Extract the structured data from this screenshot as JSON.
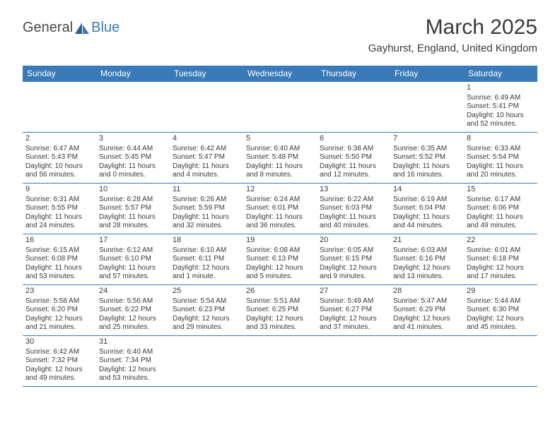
{
  "logo": {
    "general": "General",
    "blue": "Blue"
  },
  "title": "March 2025",
  "location": "Gayhurst, England, United Kingdom",
  "headers": [
    "Sunday",
    "Monday",
    "Tuesday",
    "Wednesday",
    "Thursday",
    "Friday",
    "Saturday"
  ],
  "colors": {
    "header_bg": "#3a7ab8",
    "header_text": "#ffffff",
    "border": "#3a7ab8",
    "shaded": "#f0f0f0",
    "text": "#3a3a3a"
  },
  "weeks": [
    [
      null,
      null,
      null,
      null,
      null,
      null,
      {
        "n": "1",
        "sr": "Sunrise: 6:49 AM",
        "ss": "Sunset: 5:41 PM",
        "dl1": "Daylight: 10 hours",
        "dl2": "and 52 minutes."
      }
    ],
    [
      {
        "n": "2",
        "sr": "Sunrise: 6:47 AM",
        "ss": "Sunset: 5:43 PM",
        "dl1": "Daylight: 10 hours",
        "dl2": "and 56 minutes."
      },
      {
        "n": "3",
        "sr": "Sunrise: 6:44 AM",
        "ss": "Sunset: 5:45 PM",
        "dl1": "Daylight: 11 hours",
        "dl2": "and 0 minutes."
      },
      {
        "n": "4",
        "sr": "Sunrise: 6:42 AM",
        "ss": "Sunset: 5:47 PM",
        "dl1": "Daylight: 11 hours",
        "dl2": "and 4 minutes."
      },
      {
        "n": "5",
        "sr": "Sunrise: 6:40 AM",
        "ss": "Sunset: 5:48 PM",
        "dl1": "Daylight: 11 hours",
        "dl2": "and 8 minutes."
      },
      {
        "n": "6",
        "sr": "Sunrise: 6:38 AM",
        "ss": "Sunset: 5:50 PM",
        "dl1": "Daylight: 11 hours",
        "dl2": "and 12 minutes."
      },
      {
        "n": "7",
        "sr": "Sunrise: 6:35 AM",
        "ss": "Sunset: 5:52 PM",
        "dl1": "Daylight: 11 hours",
        "dl2": "and 16 minutes."
      },
      {
        "n": "8",
        "sr": "Sunrise: 6:33 AM",
        "ss": "Sunset: 5:54 PM",
        "dl1": "Daylight: 11 hours",
        "dl2": "and 20 minutes."
      }
    ],
    [
      {
        "n": "9",
        "sr": "Sunrise: 6:31 AM",
        "ss": "Sunset: 5:55 PM",
        "dl1": "Daylight: 11 hours",
        "dl2": "and 24 minutes."
      },
      {
        "n": "10",
        "sr": "Sunrise: 6:28 AM",
        "ss": "Sunset: 5:57 PM",
        "dl1": "Daylight: 11 hours",
        "dl2": "and 28 minutes."
      },
      {
        "n": "11",
        "sr": "Sunrise: 6:26 AM",
        "ss": "Sunset: 5:59 PM",
        "dl1": "Daylight: 11 hours",
        "dl2": "and 32 minutes."
      },
      {
        "n": "12",
        "sr": "Sunrise: 6:24 AM",
        "ss": "Sunset: 6:01 PM",
        "dl1": "Daylight: 11 hours",
        "dl2": "and 36 minutes."
      },
      {
        "n": "13",
        "sr": "Sunrise: 6:22 AM",
        "ss": "Sunset: 6:03 PM",
        "dl1": "Daylight: 11 hours",
        "dl2": "and 40 minutes."
      },
      {
        "n": "14",
        "sr": "Sunrise: 6:19 AM",
        "ss": "Sunset: 6:04 PM",
        "dl1": "Daylight: 11 hours",
        "dl2": "and 44 minutes."
      },
      {
        "n": "15",
        "sr": "Sunrise: 6:17 AM",
        "ss": "Sunset: 6:06 PM",
        "dl1": "Daylight: 11 hours",
        "dl2": "and 49 minutes."
      }
    ],
    [
      {
        "n": "16",
        "sr": "Sunrise: 6:15 AM",
        "ss": "Sunset: 6:08 PM",
        "dl1": "Daylight: 11 hours",
        "dl2": "and 53 minutes."
      },
      {
        "n": "17",
        "sr": "Sunrise: 6:12 AM",
        "ss": "Sunset: 6:10 PM",
        "dl1": "Daylight: 11 hours",
        "dl2": "and 57 minutes."
      },
      {
        "n": "18",
        "sr": "Sunrise: 6:10 AM",
        "ss": "Sunset: 6:11 PM",
        "dl1": "Daylight: 12 hours",
        "dl2": "and 1 minute."
      },
      {
        "n": "19",
        "sr": "Sunrise: 6:08 AM",
        "ss": "Sunset: 6:13 PM",
        "dl1": "Daylight: 12 hours",
        "dl2": "and 5 minutes."
      },
      {
        "n": "20",
        "sr": "Sunrise: 6:05 AM",
        "ss": "Sunset: 6:15 PM",
        "dl1": "Daylight: 12 hours",
        "dl2": "and 9 minutes."
      },
      {
        "n": "21",
        "sr": "Sunrise: 6:03 AM",
        "ss": "Sunset: 6:16 PM",
        "dl1": "Daylight: 12 hours",
        "dl2": "and 13 minutes."
      },
      {
        "n": "22",
        "sr": "Sunrise: 6:01 AM",
        "ss": "Sunset: 6:18 PM",
        "dl1": "Daylight: 12 hours",
        "dl2": "and 17 minutes."
      }
    ],
    [
      {
        "n": "23",
        "sr": "Sunrise: 5:58 AM",
        "ss": "Sunset: 6:20 PM",
        "dl1": "Daylight: 12 hours",
        "dl2": "and 21 minutes."
      },
      {
        "n": "24",
        "sr": "Sunrise: 5:56 AM",
        "ss": "Sunset: 6:22 PM",
        "dl1": "Daylight: 12 hours",
        "dl2": "and 25 minutes."
      },
      {
        "n": "25",
        "sr": "Sunrise: 5:54 AM",
        "ss": "Sunset: 6:23 PM",
        "dl1": "Daylight: 12 hours",
        "dl2": "and 29 minutes."
      },
      {
        "n": "26",
        "sr": "Sunrise: 5:51 AM",
        "ss": "Sunset: 6:25 PM",
        "dl1": "Daylight: 12 hours",
        "dl2": "and 33 minutes."
      },
      {
        "n": "27",
        "sr": "Sunrise: 5:49 AM",
        "ss": "Sunset: 6:27 PM",
        "dl1": "Daylight: 12 hours",
        "dl2": "and 37 minutes."
      },
      {
        "n": "28",
        "sr": "Sunrise: 5:47 AM",
        "ss": "Sunset: 6:29 PM",
        "dl1": "Daylight: 12 hours",
        "dl2": "and 41 minutes."
      },
      {
        "n": "29",
        "sr": "Sunrise: 5:44 AM",
        "ss": "Sunset: 6:30 PM",
        "dl1": "Daylight: 12 hours",
        "dl2": "and 45 minutes."
      }
    ],
    [
      {
        "n": "30",
        "sr": "Sunrise: 6:42 AM",
        "ss": "Sunset: 7:32 PM",
        "dl1": "Daylight: 12 hours",
        "dl2": "and 49 minutes."
      },
      {
        "n": "31",
        "sr": "Sunrise: 6:40 AM",
        "ss": "Sunset: 7:34 PM",
        "dl1": "Daylight: 12 hours",
        "dl2": "and 53 minutes."
      },
      null,
      null,
      null,
      null,
      null
    ]
  ]
}
